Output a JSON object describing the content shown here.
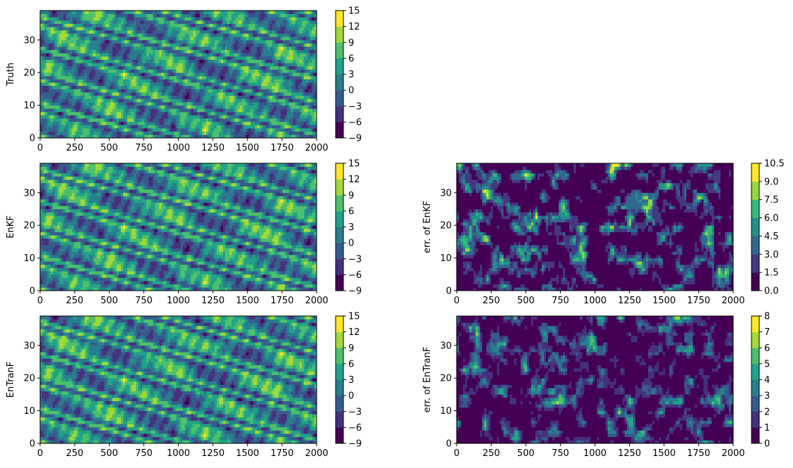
{
  "chart_data": [
    {
      "type": "heatmap",
      "title": "",
      "xlabel": "",
      "ylabel": "Truth",
      "xlim": [
        0,
        2000
      ],
      "ylim": [
        0,
        39
      ],
      "xticks": [
        "0",
        "250",
        "500",
        "750",
        "1000",
        "1250",
        "1500",
        "1750",
        "2000"
      ],
      "yticks": [
        "0",
        "10",
        "20",
        "30"
      ],
      "colorbar": {
        "ticks": [
          "−9",
          "−6",
          "−3",
          "0",
          "3",
          "6",
          "9",
          "12",
          "15"
        ],
        "min": -9,
        "max": 15,
        "levels": 8
      },
      "colormap": "viridis",
      "pattern": "diagonal bands of alternating high and low values across the full domain",
      "grid": false
    },
    {
      "type": "heatmap",
      "title": "",
      "xlabel": "",
      "ylabel": "EnKF",
      "xlim": [
        0,
        2000
      ],
      "ylim": [
        0,
        39
      ],
      "xticks": [
        "0",
        "250",
        "500",
        "750",
        "1000",
        "1250",
        "1500",
        "1750",
        "2000"
      ],
      "yticks": [
        "0",
        "10",
        "20",
        "30"
      ],
      "colorbar": {
        "ticks": [
          "−9",
          "−6",
          "−3",
          "0",
          "3",
          "6",
          "9",
          "12",
          "15"
        ],
        "min": -9,
        "max": 15,
        "levels": 8
      },
      "colormap": "viridis",
      "pattern": "diagonal bands closely matching the truth field",
      "grid": false
    },
    {
      "type": "heatmap",
      "title": "",
      "xlabel": "",
      "ylabel": "err. of EnKF",
      "xlim": [
        0,
        2000
      ],
      "ylim": [
        0,
        39
      ],
      "xticks": [
        "0",
        "250",
        "500",
        "750",
        "1000",
        "1250",
        "1500",
        "1750",
        "2000"
      ],
      "yticks": [
        "0",
        "10",
        "20",
        "30"
      ],
      "colorbar": {
        "ticks": [
          "0.0",
          "1.5",
          "3.0",
          "4.5",
          "6.0",
          "7.5",
          "9.0",
          "10.5"
        ],
        "min": 0,
        "max": 10.5,
        "levels": 7
      },
      "colormap": "viridis",
      "pattern": "mostly near zero with sparse patches of larger error",
      "grid": false
    },
    {
      "type": "heatmap",
      "title": "",
      "xlabel": "",
      "ylabel": "EnTranF",
      "xlim": [
        0,
        2000
      ],
      "ylim": [
        0,
        39
      ],
      "xticks": [
        "0",
        "250",
        "500",
        "750",
        "1000",
        "1250",
        "1500",
        "1750",
        "2000"
      ],
      "yticks": [
        "0",
        "10",
        "20",
        "30"
      ],
      "colorbar": {
        "ticks": [
          "−9",
          "−6",
          "−3",
          "0",
          "3",
          "6",
          "9",
          "12",
          "15"
        ],
        "min": -9,
        "max": 15,
        "levels": 8
      },
      "colormap": "viridis",
      "pattern": "diagonal bands closely matching the truth field",
      "grid": false
    },
    {
      "type": "heatmap",
      "title": "",
      "xlabel": "",
      "ylabel": "err. of EnTranF",
      "xlim": [
        0,
        2000
      ],
      "ylim": [
        0,
        39
      ],
      "xticks": [
        "0",
        "250",
        "500",
        "750",
        "1000",
        "1250",
        "1500",
        "1750",
        "2000"
      ],
      "yticks": [
        "0",
        "10",
        "20",
        "30"
      ],
      "colorbar": {
        "ticks": [
          "0",
          "1",
          "2",
          "3",
          "4",
          "5",
          "6",
          "7",
          "8"
        ],
        "min": 0,
        "max": 8,
        "levels": 8
      },
      "colormap": "viridis",
      "pattern": "mostly low error with scattered patches, lower than EnKF error",
      "grid": false
    }
  ]
}
